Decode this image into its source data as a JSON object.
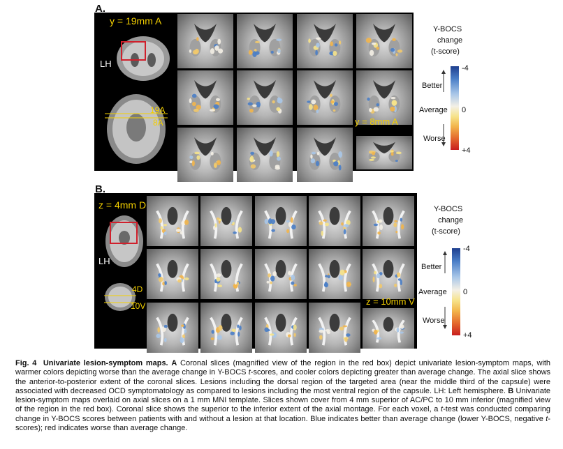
{
  "panel_a": {
    "label": "A.",
    "coord_top": "y = 19mm A",
    "hemisphere": "LH",
    "marker_top": "19A",
    "marker_bottom": "8A",
    "coord_end": "y = 8mm A",
    "legend_title": [
      "Y-BOCS",
      "change",
      "(t-score)"
    ],
    "scale_top": "-4",
    "scale_mid": "0",
    "scale_bottom": "+4",
    "better": "Better",
    "average": "Average",
    "worse": "Worse"
  },
  "panel_b": {
    "label": "B.",
    "coord_top": "z = 4mm D",
    "hemisphere": "LH",
    "marker_top": "4D",
    "marker_bottom": "10V",
    "coord_end": "z = 10mm V",
    "legend_title": [
      "Y-BOCS",
      "change",
      "(t-score)"
    ],
    "scale_top": "-4",
    "scale_mid": "0",
    "scale_bottom": "+4",
    "better": "Better",
    "average": "Average",
    "worse": "Worse"
  },
  "caption": {
    "fig": "Fig. 4",
    "title": "Univariate lesion-symptom maps.",
    "part_a_label": "A",
    "part_a_1": "Coronal slices (magnified view of the region in the red box) depict univariate lesion-symptom maps, with warmer colors depicting worse than the average change in Y-BOCS ",
    "t1": "t",
    "part_a_2": "-scores, and cooler colors depicting greater than average change. The axial slice shows the anterior-to-posterior extent of the coronal slices. Lesions including the dorsal region of the targeted area (near the middle third of the capsule) were associated with decreased OCD symptomatology as compared to lesions including the most ventral region of the capsule. LH: Left hemisphere.",
    "part_b_label": "B",
    "part_b_1": "Univariate lesion-symptom maps overlaid on axial slices on a 1 mm MNI template. Slices shown cover from 4 mm superior of AC/PC to 10 mm inferior (magnified view of the region in the red box). Coronal slice shows the superior to the inferior extent of the axial montage. For each voxel, a ",
    "t2": "t",
    "part_b_2": "-test was conducted comparing change in Y-BOCS scores between patients with and without a lesion at that location. Blue indicates better than average change (lower Y-BOCS, negative ",
    "t3": "t",
    "part_b_3": "-scores); red indicates worse than average change."
  },
  "colors": {
    "panel_bg": "#000000",
    "label_yellow": "#f4d000",
    "roi_box": "#d0202c",
    "better_blue": "#1e3f8f",
    "worse_red": "#c81e1e"
  }
}
